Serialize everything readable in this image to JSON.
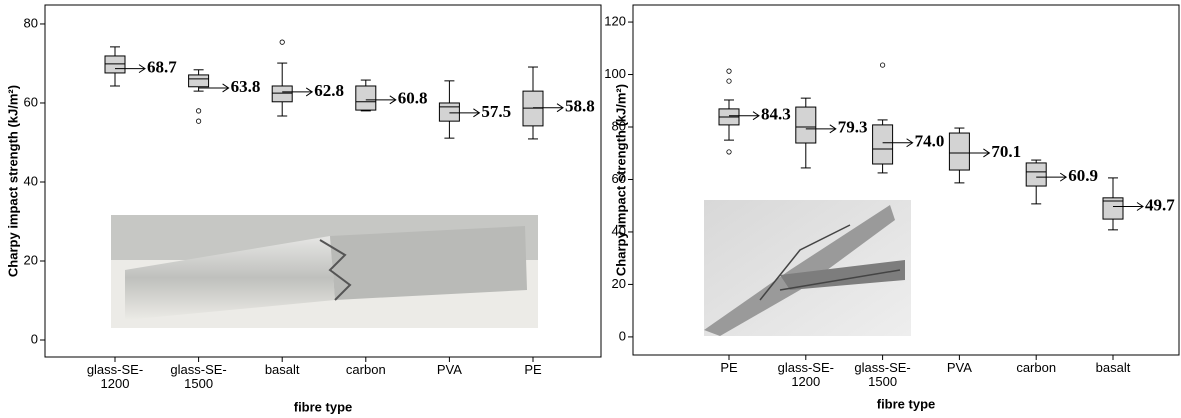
{
  "chart_data": [
    {
      "type": "box",
      "y_label": "Charpy impact strength (kJ/m²)",
      "x_label": "fibre type",
      "categories": [
        "glass-SE-\n1200",
        "glass-SE-\n1500",
        "basalt",
        "carbon",
        "PVA",
        "PE"
      ],
      "ylim": [
        -4.3,
        84.8
      ],
      "yticks": [
        0,
        20,
        40,
        60,
        80
      ],
      "color": "#d3d3d3",
      "boxes": [
        {
          "whisker_low": 64.3,
          "q1": 67.6,
          "median": 69.9,
          "q3": 71.9,
          "whisker_high": 74.2,
          "outliers": []
        },
        {
          "whisker_low": 63.0,
          "q1": 64.1,
          "median": 66.1,
          "q3": 67.1,
          "whisker_high": 68.4,
          "outliers": [
            58.0,
            55.4
          ]
        },
        {
          "whisker_low": 56.7,
          "q1": 60.3,
          "median": 62.5,
          "q3": 64.3,
          "whisker_high": 70.1,
          "outliers": [
            75.4
          ]
        },
        {
          "whisker_low": 58.0,
          "q1": 58.2,
          "median": 60.3,
          "q3": 64.3,
          "whisker_high": 65.8,
          "outliers": []
        },
        {
          "whisker_low": 51.1,
          "q1": 55.4,
          "median": 59.0,
          "q3": 60.0,
          "whisker_high": 65.6,
          "outliers": []
        },
        {
          "whisker_low": 50.9,
          "q1": 54.2,
          "median": 58.7,
          "q3": 63.0,
          "whisker_high": 69.1,
          "outliers": []
        }
      ],
      "values": [
        68.7,
        63.8,
        62.8,
        60.8,
        57.5,
        58.8
      ],
      "value_labels": [
        "68.7",
        "63.8",
        "62.8",
        "60.8",
        "57.5",
        "58.8"
      ]
    },
    {
      "type": "box",
      "y_label": "Charpy impact strength (kJ/m²)",
      "x_label": "fibre type",
      "categories": [
        "PE",
        "glass-SE-\n1200",
        "glass-SE-\n1500",
        "PVA",
        "carbon",
        "basalt"
      ],
      "ylim": [
        -6.9,
        126.5
      ],
      "yticks": [
        0,
        20,
        40,
        60,
        80,
        100,
        120
      ],
      "color": "#d3d3d3",
      "boxes": [
        {
          "whisker_low": 75.0,
          "q1": 80.8,
          "median": 83.8,
          "q3": 86.9,
          "whisker_high": 90.3,
          "outliers": [
            101.3,
            97.5,
            70.5
          ]
        },
        {
          "whisker_low": 64.4,
          "q1": 73.9,
          "median": 80.0,
          "q3": 87.6,
          "whisker_high": 91.0,
          "outliers": []
        },
        {
          "whisker_low": 62.5,
          "q1": 65.9,
          "median": 71.6,
          "q3": 80.8,
          "whisker_high": 82.7,
          "outliers": [
            103.6
          ]
        },
        {
          "whisker_low": 58.7,
          "q1": 63.6,
          "median": 70.1,
          "q3": 77.7,
          "whisker_high": 79.6,
          "outliers": []
        },
        {
          "whisker_low": 50.7,
          "q1": 57.5,
          "median": 62.9,
          "q3": 66.3,
          "whisker_high": 67.4,
          "outliers": []
        },
        {
          "whisker_low": 40.8,
          "q1": 44.9,
          "median": 51.8,
          "q3": 53.0,
          "whisker_high": 60.6,
          "outliers": []
        }
      ],
      "values": [
        84.3,
        79.3,
        74.0,
        70.1,
        60.9,
        49.7
      ],
      "value_labels": [
        "84.3",
        "79.3",
        "74.0",
        "70.1",
        "60.9",
        "49.7"
      ]
    }
  ]
}
